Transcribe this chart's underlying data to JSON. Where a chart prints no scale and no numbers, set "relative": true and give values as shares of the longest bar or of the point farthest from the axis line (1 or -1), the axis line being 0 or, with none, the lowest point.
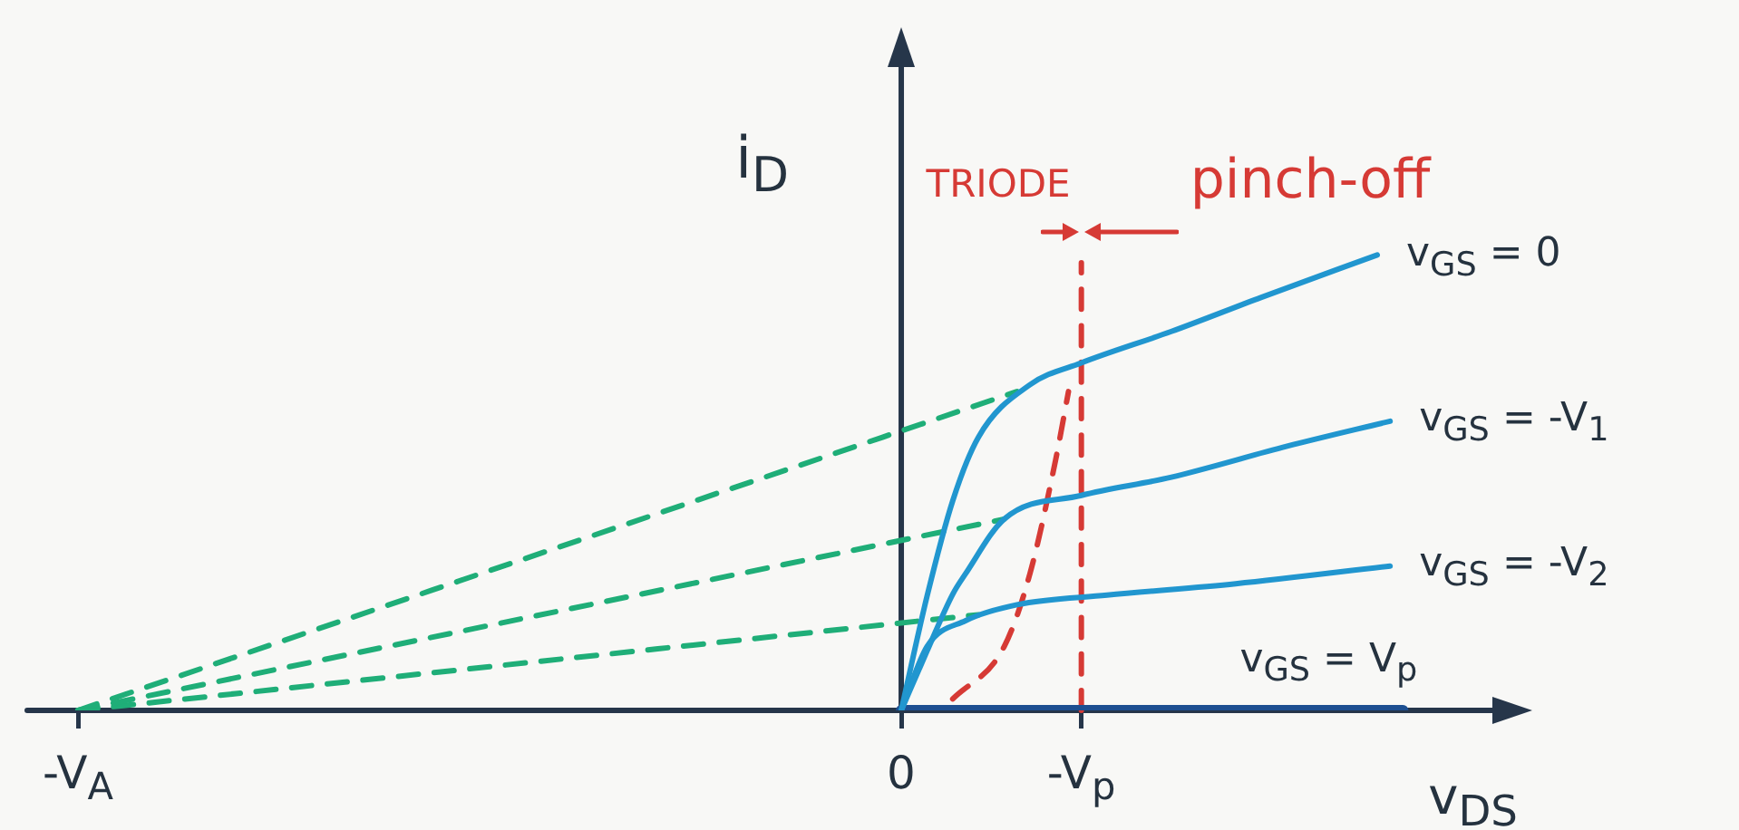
{
  "chart_data": {
    "type": "line",
    "relative": true,
    "xlabel": "v$_{DS}$",
    "ylabel": "i$_{D}$",
    "marker": "none",
    "categories": [
      "-V$_{A}$",
      null,
      null,
      null,
      null,
      null,
      null,
      null,
      null,
      null,
      null,
      null,
      null,
      null,
      null,
      null,
      null,
      null,
      null,
      null,
      null,
      null,
      null,
      null,
      null,
      null,
      null,
      null,
      null,
      null,
      null,
      null,
      null,
      null,
      null,
      null,
      null,
      null,
      null,
      null,
      null,
      null,
      null,
      null,
      null,
      null,
      null,
      null,
      null,
      null,
      null,
      null,
      null,
      null,
      null,
      null,
      null,
      null,
      null,
      null,
      null,
      null,
      null,
      null,
      "0",
      null,
      null,
      null,
      null,
      null,
      null,
      null,
      null,
      null,
      null,
      null,
      null,
      null,
      "-V$_{p}$",
      null,
      null,
      null,
      null,
      null,
      null,
      null,
      null,
      null,
      null,
      null,
      null,
      null,
      null,
      null,
      null,
      null,
      null,
      null,
      null,
      null,
      null,
      null,
      null,
      null
    ],
    "series": [
      {
        "name": "v$_{GS}$ = 0",
        "color": "#2196cf",
        "values": [
          null,
          null,
          null,
          null,
          null,
          null,
          null,
          null,
          null,
          null,
          null,
          null,
          null,
          null,
          null,
          null,
          null,
          null,
          null,
          null,
          null,
          null,
          null,
          null,
          null,
          null,
          null,
          null,
          null,
          null,
          null,
          null,
          null,
          null,
          null,
          null,
          null,
          null,
          null,
          null,
          null,
          null,
          null,
          null,
          null,
          null,
          null,
          null,
          null,
          null,
          null,
          null,
          null,
          null,
          null,
          null,
          null,
          null,
          null,
          null,
          null,
          null,
          null,
          null,
          0,
          null,
          0.25,
          null,
          0.46,
          null,
          0.6,
          null,
          null,
          null,
          0.715,
          null,
          null,
          null,
          0.763,
          null,
          null,
          null,
          null,
          null,
          null,
          0.832,
          null,
          null,
          null,
          null,
          null,
          null,
          0.907,
          null,
          null,
          null,
          null,
          null,
          null,
          null,
          null,
          1,
          null,
          null
        ]
      },
      {
        "name": "v$_{GS}$ = -V$_{1}$",
        "color": "#2196cf",
        "values": [
          null,
          null,
          null,
          null,
          null,
          null,
          null,
          null,
          null,
          null,
          null,
          null,
          null,
          null,
          null,
          null,
          null,
          null,
          null,
          null,
          null,
          null,
          null,
          null,
          null,
          null,
          null,
          null,
          null,
          null,
          null,
          null,
          null,
          null,
          null,
          null,
          null,
          null,
          null,
          null,
          null,
          null,
          null,
          null,
          null,
          null,
          null,
          null,
          null,
          null,
          null,
          null,
          null,
          null,
          null,
          null,
          null,
          null,
          null,
          null,
          null,
          null,
          null,
          null,
          0,
          null,
          0.13,
          null,
          0.255,
          0.3,
          null,
          null,
          0.42,
          null,
          null,
          null,
          null,
          null,
          0.472,
          null,
          null,
          null,
          null,
          null,
          null,
          0.512,
          null,
          null,
          null,
          null,
          null,
          null,
          null,
          null,
          0.58,
          null,
          null,
          null,
          null,
          null,
          null,
          null,
          0.635,
          null
        ]
      },
      {
        "name": "v$_{GS}$ = -V$_{2}$",
        "color": "#2196cf",
        "values": [
          null,
          null,
          null,
          null,
          null,
          null,
          null,
          null,
          null,
          null,
          null,
          null,
          null,
          null,
          null,
          null,
          null,
          null,
          null,
          null,
          null,
          null,
          null,
          null,
          null,
          null,
          null,
          null,
          null,
          null,
          null,
          null,
          null,
          null,
          null,
          null,
          null,
          null,
          null,
          null,
          null,
          null,
          null,
          null,
          null,
          null,
          null,
          null,
          null,
          null,
          null,
          null,
          null,
          null,
          null,
          null,
          null,
          null,
          null,
          null,
          null,
          null,
          null,
          null,
          0,
          null,
          0.14,
          null,
          null,
          0.197,
          null,
          null,
          null,
          0.232,
          null,
          null,
          null,
          null,
          null,
          null,
          0.253,
          null,
          null,
          null,
          null,
          null,
          null,
          null,
          null,
          null,
          0.278,
          null,
          null,
          null,
          null,
          null,
          null,
          null,
          null,
          null,
          null,
          null,
          0.317,
          null
        ]
      },
      {
        "name": "v$_{GS}$ = V$_{p}$",
        "color": "#1d4f91",
        "values": [
          null,
          null,
          null,
          null,
          null,
          null,
          null,
          null,
          null,
          null,
          null,
          null,
          null,
          null,
          null,
          null,
          null,
          null,
          null,
          null,
          null,
          null,
          null,
          null,
          null,
          null,
          null,
          null,
          null,
          null,
          null,
          null,
          null,
          null,
          null,
          null,
          null,
          null,
          null,
          null,
          null,
          null,
          null,
          null,
          null,
          null,
          null,
          null,
          null,
          null,
          null,
          null,
          null,
          null,
          null,
          null,
          null,
          null,
          null,
          null,
          null,
          null,
          null,
          null,
          0,
          null,
          null,
          null,
          null,
          null,
          null,
          null,
          null,
          null,
          null,
          null,
          null,
          null,
          null,
          null,
          null,
          null,
          null,
          null,
          null,
          null,
          null,
          null,
          null,
          null,
          null,
          null,
          null,
          null,
          null,
          null,
          null,
          null,
          null,
          null,
          null,
          null,
          null,
          0
        ]
      },
      {
        "color": "#d63a35",
        "line_style": "dashed",
        "values": [
          null,
          null,
          null,
          null,
          null,
          null,
          null,
          null,
          null,
          null,
          null,
          null,
          null,
          null,
          null,
          null,
          null,
          null,
          null,
          null,
          null,
          null,
          null,
          null,
          null,
          null,
          null,
          null,
          null,
          null,
          null,
          null,
          null,
          null,
          null,
          null,
          null,
          null,
          null,
          null,
          null,
          null,
          null,
          null,
          null,
          null,
          null,
          null,
          null,
          null,
          null,
          null,
          null,
          null,
          null,
          null,
          null,
          null,
          null,
          null,
          null,
          null,
          null,
          null,
          null,
          null,
          null,
          null,
          0.025,
          null,
          null,
          null,
          0.14,
          null,
          0.3,
          null,
          0.55,
          0.7,
          null,
          null,
          null,
          null,
          null,
          null,
          null,
          null,
          null,
          null,
          null,
          null,
          null,
          null,
          null,
          null,
          null,
          null,
          null,
          null,
          null,
          null,
          null,
          null,
          null,
          null
        ]
      },
      {
        "color": "#1fae78",
        "line_style": "dashed",
        "values": [
          0,
          null,
          null,
          null,
          null,
          null,
          null,
          null,
          null,
          null,
          null,
          null,
          null,
          null,
          null,
          null,
          null,
          null,
          null,
          null,
          null,
          null,
          null,
          null,
          null,
          null,
          null,
          null,
          null,
          null,
          null,
          null,
          null,
          null,
          null,
          null,
          null,
          null,
          null,
          null,
          null,
          null,
          null,
          null,
          null,
          null,
          null,
          null,
          null,
          null,
          null,
          null,
          null,
          null,
          null,
          null,
          null,
          null,
          null,
          null,
          null,
          null,
          null,
          null,
          null,
          null,
          null,
          null,
          null,
          null,
          null,
          null,
          null,
          0.7,
          null,
          null,
          null,
          null,
          null,
          null,
          null,
          null,
          null,
          null,
          null,
          null,
          null,
          null,
          null,
          null,
          null,
          null,
          null,
          null,
          null,
          null,
          null,
          null,
          null,
          null,
          null,
          null,
          null,
          null
        ]
      },
      {
        "color": "#1fae78",
        "line_style": "dashed",
        "values": [
          0,
          null,
          null,
          null,
          null,
          null,
          null,
          null,
          null,
          null,
          null,
          null,
          null,
          null,
          null,
          null,
          null,
          null,
          null,
          null,
          null,
          null,
          null,
          null,
          null,
          null,
          null,
          null,
          null,
          null,
          null,
          null,
          null,
          null,
          null,
          null,
          null,
          null,
          null,
          null,
          null,
          null,
          null,
          null,
          null,
          null,
          null,
          null,
          null,
          null,
          null,
          null,
          null,
          null,
          null,
          null,
          null,
          null,
          null,
          null,
          null,
          null,
          null,
          null,
          null,
          null,
          null,
          null,
          null,
          null,
          null,
          null,
          0.42,
          null,
          null,
          null,
          null,
          null,
          null,
          null,
          null,
          null,
          null,
          null,
          null,
          null,
          null,
          null,
          null,
          null,
          null,
          null,
          null,
          null,
          null,
          null,
          null,
          null,
          null,
          null,
          null,
          null,
          null,
          null
        ]
      },
      {
        "color": "#1fae78",
        "line_style": "dashed",
        "values": [
          0,
          null,
          null,
          null,
          null,
          null,
          null,
          null,
          null,
          null,
          null,
          null,
          null,
          null,
          null,
          null,
          null,
          null,
          null,
          null,
          null,
          null,
          null,
          null,
          null,
          null,
          null,
          null,
          null,
          null,
          null,
          null,
          null,
          null,
          null,
          null,
          null,
          null,
          null,
          null,
          null,
          null,
          null,
          null,
          null,
          null,
          null,
          null,
          null,
          null,
          null,
          null,
          null,
          null,
          null,
          null,
          null,
          null,
          null,
          null,
          null,
          null,
          null,
          null,
          null,
          null,
          null,
          null,
          null,
          null,
          0.21,
          null,
          null,
          null,
          null,
          null,
          null,
          null,
          null,
          null,
          null,
          null,
          null,
          null,
          null,
          null,
          null,
          null,
          null,
          null,
          null,
          null,
          null,
          null,
          null,
          null,
          null,
          null,
          null,
          null,
          null,
          null,
          null,
          null
        ]
      }
    ],
    "ref_lines": [
      {
        "axis": "x",
        "value": "-V$_{p}$",
        "color": "#d63a35",
        "line_style": "dashed"
      }
    ],
    "annotations": [
      "TRIODE",
      "pinch-off"
    ]
  }
}
